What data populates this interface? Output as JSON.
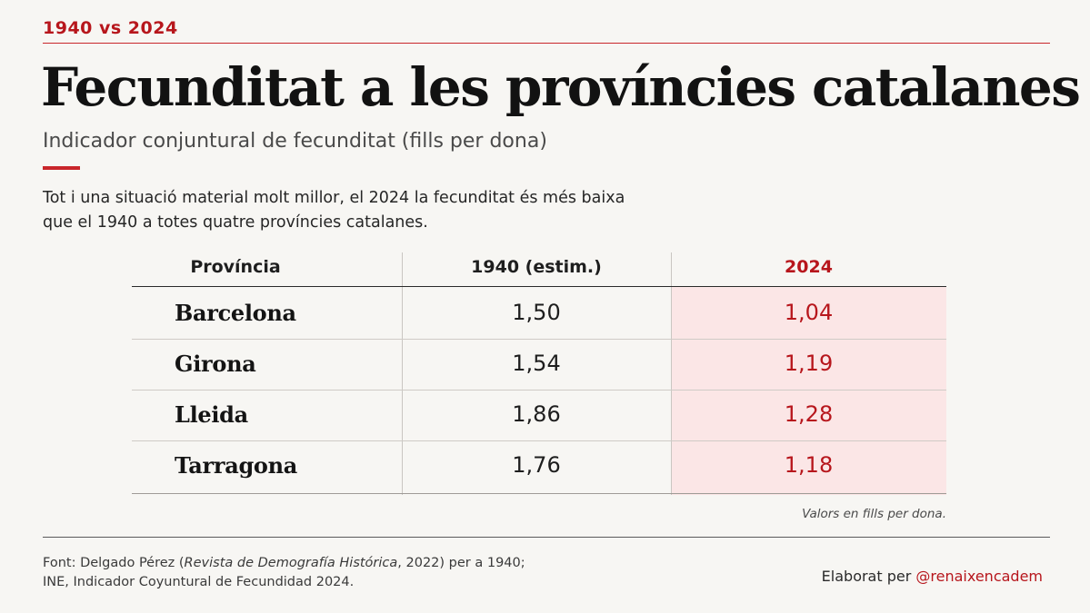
{
  "header": {
    "kicker": "1940 vs 2024",
    "title": "Fecunditat a les províncies catalanes",
    "subtitle": "Indicador conjuntural de fecunditat (fills per dona)"
  },
  "lead": {
    "line1": "Tot i una situació material molt millor, el 2024 la fecunditat és més baixa",
    "line2": "que el 1940 a totes quatre províncies catalanes."
  },
  "table": {
    "headers": [
      "Província",
      "1940 (estim.)",
      "2024"
    ],
    "rows": [
      {
        "province": "Barcelona",
        "v1940": "1,50",
        "v2024": "1,04"
      },
      {
        "province": "Girona",
        "v1940": "1,54",
        "v2024": "1,19"
      },
      {
        "province": "Lleida",
        "v1940": "1,86",
        "v2024": "1,28"
      },
      {
        "province": "Tarragona",
        "v1940": "1,76",
        "v2024": "1,18"
      }
    ],
    "note": "Valors en fills per dona."
  },
  "footer": {
    "source_prefix": "Font: Delgado Pérez (",
    "source_journal": "Revista de Demografía Histórica",
    "source_suffix": ", 2022) per a 1940;",
    "source_line2": "INE, Indicador Coyuntural de Fecundidad 2024.",
    "credit_prefix": "Elaborat per ",
    "credit_handle": "@renaixencadem"
  },
  "colors": {
    "accent": "#b7161c",
    "highlight": "#fbe6e6",
    "background": "#f7f6f3"
  }
}
